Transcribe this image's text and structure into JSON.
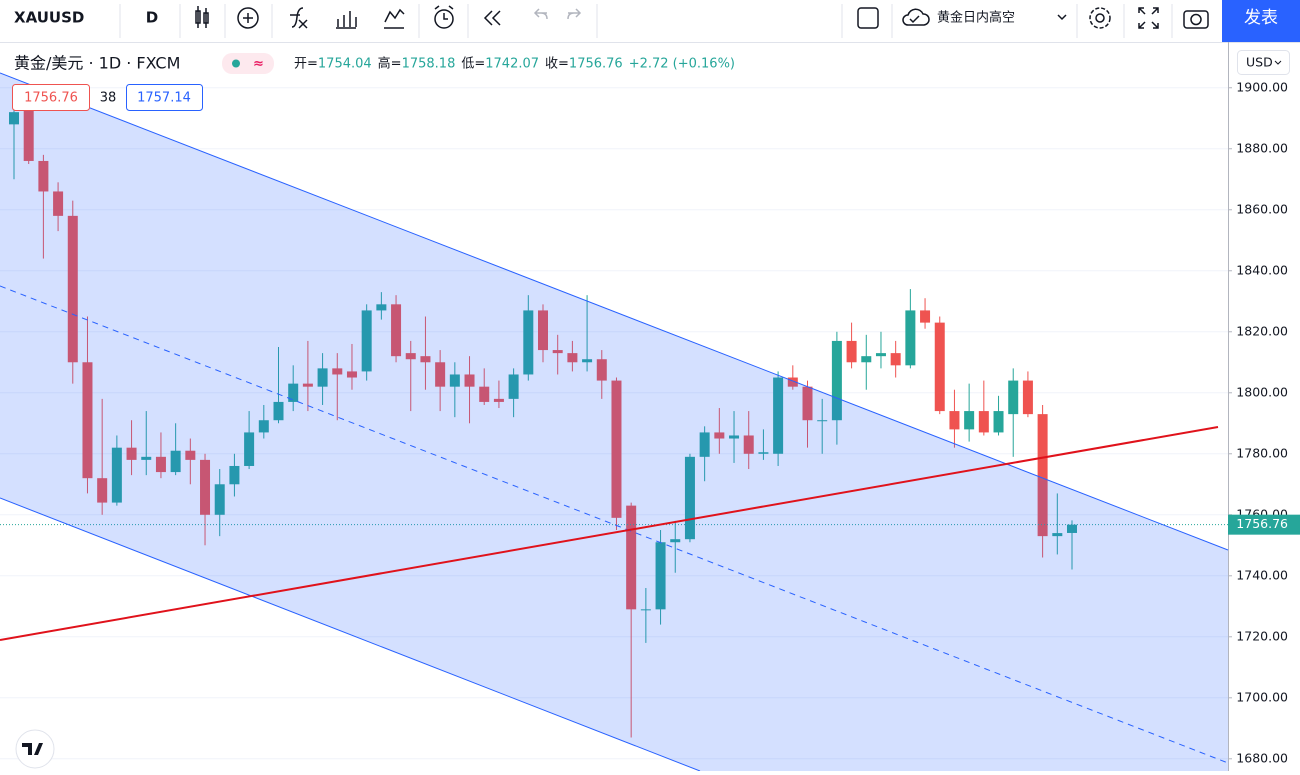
{
  "header": {
    "symbol": "XAUUSD",
    "interval": "D",
    "layout_name": "黄金日内高空",
    "publish": "发表"
  },
  "legend": {
    "name": "黄金/美元 · 1D · FXCM",
    "badge": "≈",
    "ohlc": [
      {
        "label": "开=",
        "value": "1754.04"
      },
      {
        "label": "高=",
        "value": "1758.18"
      },
      {
        "label": "低=",
        "value": "1742.07"
      },
      {
        "label": "收=",
        "value": "1756.76"
      }
    ],
    "change": "+2.72 (+0.16%)",
    "bid": "1756.76",
    "spread": "38",
    "ask": "1757.14"
  },
  "chart_data": {
    "type": "candlestick",
    "currency": "USD",
    "up_color": "#26a69a",
    "down_color": "#ef5350",
    "ylim": [
      1676,
      1915
    ],
    "yticks": [
      {
        "value": 1680,
        "label": "1680.00"
      },
      {
        "value": 1700,
        "label": "1700.00"
      },
      {
        "value": 1720,
        "label": "1720.00"
      },
      {
        "value": 1740,
        "label": "1740.00"
      },
      {
        "value": 1760,
        "label": "1760.00"
      },
      {
        "value": 1780,
        "label": "1780.00"
      },
      {
        "value": 1800,
        "label": "1800.00"
      },
      {
        "value": 1820,
        "label": "1820.00"
      },
      {
        "value": 1840,
        "label": "1840.00"
      },
      {
        "value": 1860,
        "label": "1860.00"
      },
      {
        "value": 1880,
        "label": "1880.00"
      },
      {
        "value": 1900,
        "label": "1900.00"
      }
    ],
    "grid": true,
    "last_price": 1756.76,
    "open": [
      1888,
      1893,
      1876,
      1866,
      1858,
      1810,
      1772,
      1764,
      1782,
      1778,
      1779,
      1774,
      1781,
      1778,
      1760,
      1770,
      1776,
      1787,
      1791,
      1797,
      1803,
      1802,
      1808,
      1807,
      1807,
      1827,
      1829,
      1813,
      1812,
      1810,
      1802,
      1806,
      1802,
      1798,
      1798,
      1806,
      1827,
      1814,
      1813,
      1810,
      1811,
      1804,
      1763,
      1729,
      1729,
      1751,
      1752,
      1779,
      1787,
      1785,
      1786,
      1780,
      1780,
      1805,
      1802,
      1791,
      1791,
      1817,
      1810,
      1812,
      1813,
      1809,
      1827,
      1823,
      1794,
      1788,
      1794,
      1787,
      1793,
      1804,
      1793,
      1753,
      1754.04
    ],
    "high": [
      1898,
      1896,
      1878,
      1869,
      1863,
      1825,
      1798,
      1786,
      1791,
      1794,
      1787,
      1790,
      1785,
      1780,
      1775,
      1780,
      1794,
      1796,
      1815,
      1809,
      1817,
      1813,
      1813,
      1816,
      1829,
      1833,
      1832,
      1817,
      1825,
      1814,
      1810,
      1812,
      1808,
      1804,
      1808,
      1832,
      1829,
      1819,
      1817,
      1832,
      1814,
      1805,
      1764,
      1736,
      1755,
      1758,
      1780,
      1789,
      1795,
      1794,
      1794,
      1788,
      1807,
      1809,
      1804,
      1798,
      1820,
      1823,
      1819,
      1820,
      1817,
      1834,
      1831,
      1825,
      1801,
      1803,
      1804,
      1799,
      1808,
      1807,
      1796,
      1767,
      1758.18
    ],
    "low": [
      1870,
      1875,
      1844,
      1853,
      1803,
      1767,
      1760,
      1763,
      1773,
      1773,
      1772,
      1773,
      1770,
      1750,
      1753,
      1766,
      1775,
      1785,
      1790,
      1794,
      1794,
      1796,
      1791,
      1801,
      1804,
      1824,
      1810,
      1794,
      1801,
      1794,
      1792,
      1790,
      1796,
      1795,
      1792,
      1804,
      1810,
      1806,
      1807,
      1807,
      1798,
      1755,
      1687,
      1718,
      1724,
      1741,
      1751,
      1771,
      1780,
      1777,
      1775,
      1778,
      1776,
      1801,
      1782,
      1780,
      1783,
      1808,
      1801,
      1808,
      1805,
      1808,
      1821,
      1793,
      1782,
      1784,
      1786,
      1786,
      1779,
      1792,
      1746,
      1747,
      1742.07
    ],
    "close": [
      1892,
      1876,
      1866,
      1858,
      1810,
      1772,
      1764,
      1782,
      1778,
      1779,
      1774,
      1781,
      1778,
      1760,
      1770,
      1776,
      1787,
      1791,
      1797,
      1803,
      1802,
      1808,
      1806,
      1805,
      1827,
      1829,
      1812,
      1811,
      1810,
      1802,
      1806,
      1802,
      1797,
      1797,
      1806,
      1827,
      1814,
      1813,
      1810,
      1811,
      1804,
      1759,
      1729,
      1729,
      1751,
      1752,
      1779,
      1787,
      1785,
      1786,
      1780,
      1780.5,
      1805,
      1802,
      1791,
      1791,
      1817,
      1810,
      1812,
      1813,
      1809,
      1827,
      1823,
      1794,
      1788,
      1794,
      1787,
      1794,
      1804,
      1793,
      1753,
      1754,
      1756.76
    ]
  }
}
